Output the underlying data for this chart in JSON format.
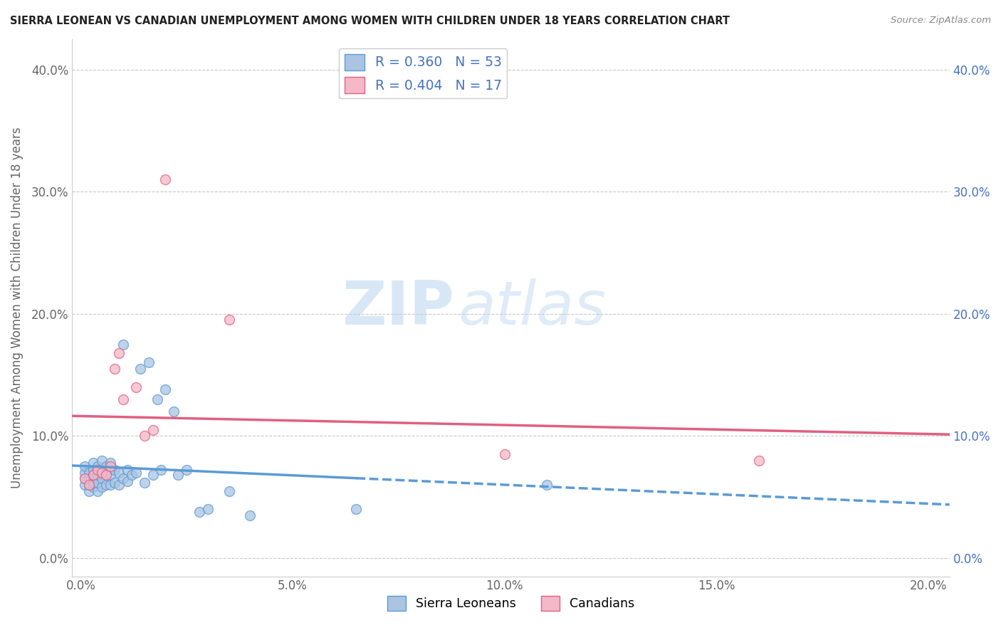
{
  "title": "SIERRA LEONEAN VS CANADIAN UNEMPLOYMENT AMONG WOMEN WITH CHILDREN UNDER 18 YEARS CORRELATION CHART",
  "source": "Source: ZipAtlas.com",
  "ylabel": "Unemployment Among Women with Children Under 18 years",
  "xlim": [
    -0.002,
    0.205
  ],
  "ylim": [
    -0.015,
    0.425
  ],
  "sl_R": 0.36,
  "sl_N": 53,
  "ca_R": 0.404,
  "ca_N": 17,
  "watermark_zip": "ZIP",
  "watermark_atlas": "atlas",
  "sl_color": "#aac4e2",
  "sl_edge_color": "#5b9bd5",
  "ca_color": "#f4b8c8",
  "ca_edge_color": "#e06080",
  "sl_line_color": "#5b9bd5",
  "ca_line_color": "#e06080",
  "legend_label_sl": "Sierra Leoneans",
  "legend_label_ca": "Canadians",
  "sl_x": [
    0.001,
    0.001,
    0.001,
    0.001,
    0.002,
    0.002,
    0.002,
    0.002,
    0.003,
    0.003,
    0.003,
    0.003,
    0.003,
    0.004,
    0.004,
    0.004,
    0.004,
    0.005,
    0.005,
    0.005,
    0.005,
    0.006,
    0.006,
    0.006,
    0.007,
    0.007,
    0.007,
    0.008,
    0.008,
    0.009,
    0.009,
    0.01,
    0.01,
    0.011,
    0.011,
    0.012,
    0.013,
    0.014,
    0.015,
    0.016,
    0.017,
    0.018,
    0.019,
    0.02,
    0.022,
    0.023,
    0.025,
    0.028,
    0.03,
    0.035,
    0.04,
    0.065,
    0.11
  ],
  "sl_y": [
    0.06,
    0.065,
    0.07,
    0.075,
    0.055,
    0.06,
    0.065,
    0.07,
    0.058,
    0.062,
    0.068,
    0.072,
    0.078,
    0.055,
    0.062,
    0.068,
    0.075,
    0.058,
    0.065,
    0.07,
    0.08,
    0.06,
    0.068,
    0.075,
    0.06,
    0.068,
    0.078,
    0.062,
    0.072,
    0.06,
    0.07,
    0.065,
    0.175,
    0.063,
    0.072,
    0.068,
    0.07,
    0.155,
    0.062,
    0.16,
    0.068,
    0.13,
    0.072,
    0.138,
    0.12,
    0.068,
    0.072,
    0.038,
    0.04,
    0.055,
    0.035,
    0.04,
    0.06
  ],
  "ca_x": [
    0.001,
    0.002,
    0.003,
    0.004,
    0.005,
    0.006,
    0.007,
    0.008,
    0.009,
    0.01,
    0.013,
    0.015,
    0.017,
    0.02,
    0.035,
    0.1,
    0.16
  ],
  "ca_y": [
    0.065,
    0.06,
    0.068,
    0.072,
    0.07,
    0.068,
    0.075,
    0.155,
    0.168,
    0.13,
    0.14,
    0.1,
    0.105,
    0.31,
    0.195,
    0.085,
    0.08
  ],
  "xtick_vals": [
    0.0,
    0.05,
    0.1,
    0.15,
    0.2
  ],
  "ytick_vals": [
    0.0,
    0.1,
    0.2,
    0.3,
    0.4
  ]
}
